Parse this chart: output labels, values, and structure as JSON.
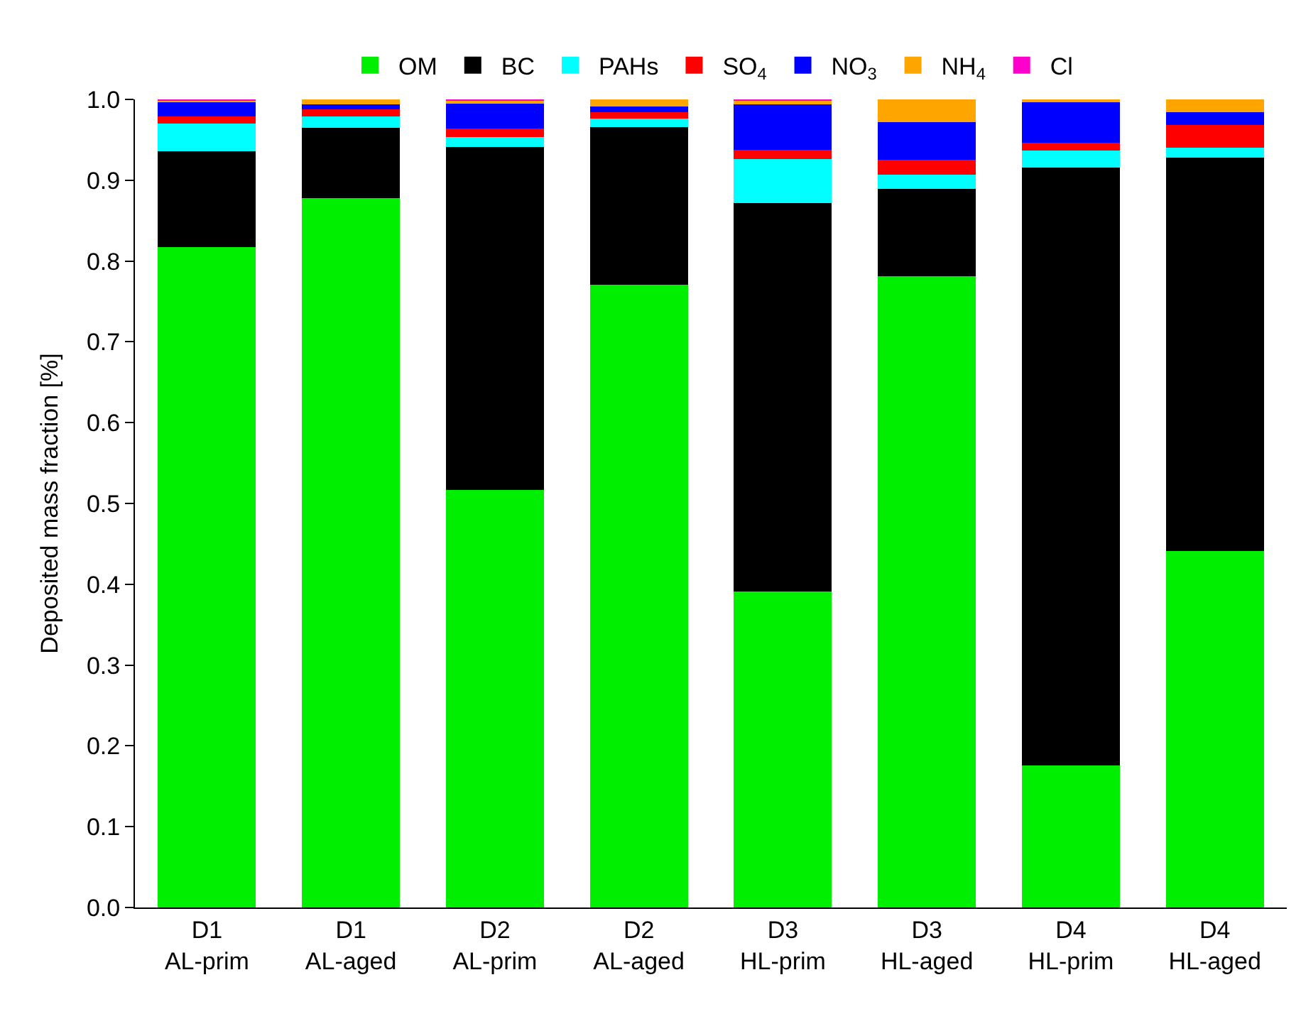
{
  "chart_data": {
    "type": "bar",
    "stacked": true,
    "ylabel": "Deposited mass fraction [%]",
    "categories": [
      "D1\nAL-prim",
      "D1\nAL-aged",
      "D2\nAL-prim",
      "D2\nAL-aged",
      "D3\nHL-prim",
      "D3\nHL-aged",
      "D4\nHL-prim",
      "D4\nHL-aged"
    ],
    "series": [
      {
        "name": "OM",
        "color": "#00ee00",
        "values": [
          0.817,
          0.878,
          0.517,
          0.771,
          0.391,
          0.781,
          0.176,
          0.441
        ]
      },
      {
        "name": "BC",
        "color": "#000000",
        "values": [
          0.119,
          0.087,
          0.424,
          0.195,
          0.481,
          0.108,
          0.74,
          0.487
        ]
      },
      {
        "name": "PAHs",
        "color": "#00ffff",
        "values": [
          0.034,
          0.014,
          0.012,
          0.01,
          0.054,
          0.018,
          0.021,
          0.012
        ]
      },
      {
        "name": "SO$_{4}$",
        "color": "#ff0000",
        "values": [
          0.009,
          0.009,
          0.011,
          0.008,
          0.012,
          0.018,
          0.009,
          0.028
        ]
      },
      {
        "name": "NO$_{3}$",
        "color": "#0000ff",
        "values": [
          0.018,
          0.006,
          0.032,
          0.007,
          0.056,
          0.047,
          0.051,
          0.016
        ]
      },
      {
        "name": "NH$_{4}$",
        "color": "#ffa500",
        "values": [
          0.002,
          0.006,
          0.003,
          0.009,
          0.005,
          0.028,
          0.003,
          0.016
        ]
      },
      {
        "name": "Cl",
        "color": "#ff00cc",
        "values": [
          0.001,
          0,
          0.001,
          0,
          0.001,
          0,
          0,
          0
        ]
      }
    ],
    "ylim": [
      0,
      1.0
    ],
    "yticks": [
      {
        "value": 0,
        "label": "0.0"
      },
      0.1,
      0.2,
      0.3,
      0.4,
      0.5,
      0.6,
      0.7,
      0.8,
      0.9,
      {
        "value": 1,
        "label": "1.0"
      }
    ],
    "legend": "top"
  }
}
